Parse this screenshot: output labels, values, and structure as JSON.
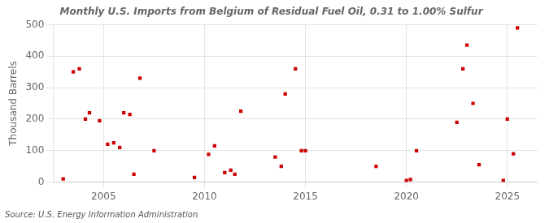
{
  "chart_data": {
    "type": "scatter",
    "title": "Monthly U.S. Imports from Belgium of Residual Fuel Oil, 0.31 to 1.00% Sulfur",
    "ylabel": "Thousand Barrels",
    "annotation": "Source: U.S. Energy Information Administration",
    "color": "#cc0000",
    "marker": "square",
    "grid": true,
    "xlim": [
      2002.5,
      2026.5
    ],
    "xticks": [
      2005,
      2010,
      2015,
      2020,
      2025
    ],
    "ylim": [
      0,
      500
    ],
    "yticks": [
      0,
      100,
      200,
      300,
      400,
      500
    ],
    "x": [
      2003.0,
      2003.5,
      2003.8,
      2004.1,
      2004.3,
      2004.8,
      2005.2,
      2005.5,
      2005.8,
      2006.0,
      2006.3,
      2006.5,
      2006.8,
      2007.5,
      2009.5,
      2010.2,
      2010.5,
      2011.0,
      2011.3,
      2011.5,
      2011.8,
      2013.5,
      2013.8,
      2014.0,
      2014.5,
      2014.8,
      2015.0,
      2018.5,
      2020.0,
      2020.2,
      2020.5,
      2022.5,
      2022.8,
      2023.0,
      2023.3,
      2023.6,
      2024.8,
      2025.0,
      2025.3,
      2025.5
    ],
    "values": [
      10,
      350,
      360,
      200,
      220,
      195,
      120,
      125,
      110,
      220,
      215,
      25,
      330,
      100,
      15,
      88,
      115,
      30,
      38,
      25,
      225,
      80,
      50,
      280,
      360,
      100,
      100,
      50,
      5,
      8,
      100,
      190,
      360,
      435,
      250,
      55,
      5,
      200,
      90,
      490
    ]
  }
}
